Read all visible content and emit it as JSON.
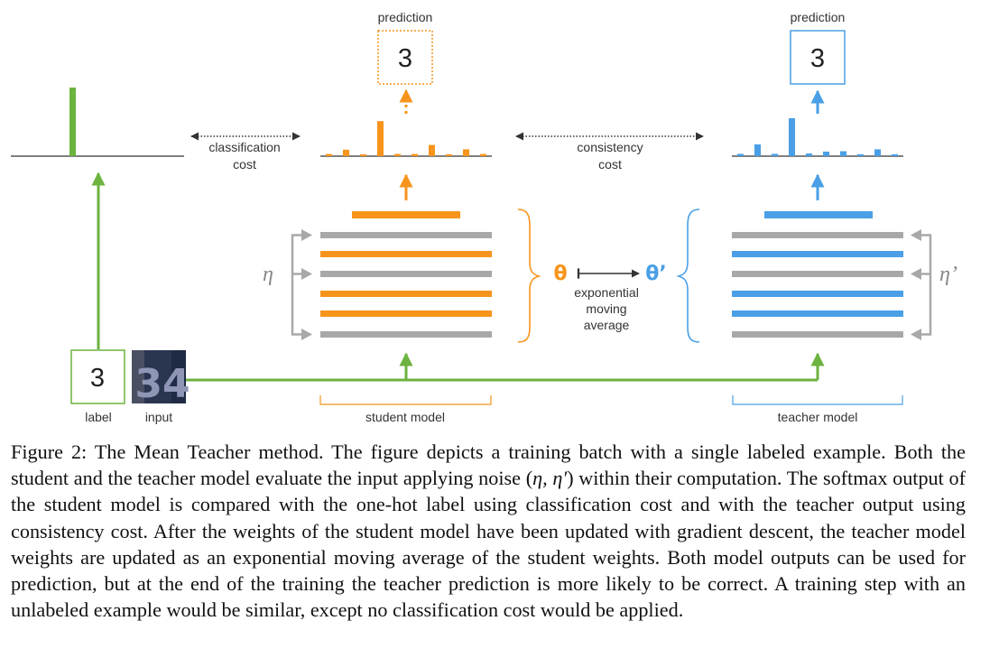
{
  "colors": {
    "green": "#6cb33f",
    "orange": "#f7941d",
    "blue": "#4a9fe6",
    "gray": "#a8a8a8",
    "dark": "#333333"
  },
  "labels": {
    "prediction_left": "prediction",
    "prediction_right": "prediction",
    "prediction_digit_left": "3",
    "prediction_digit_right": "3",
    "classification_cost_line1": "classification",
    "classification_cost_line2": "cost",
    "consistency_cost_line1": "consistency",
    "consistency_cost_line2": "cost",
    "theta": "θ",
    "theta_prime": "θ’",
    "ema_line1": "exponential",
    "ema_line2": "moving",
    "ema_line3": "average",
    "eta": "η",
    "eta_prime": "η’",
    "label_digit": "3",
    "label_caption": "label",
    "input_caption": "input",
    "input_image_text": "34",
    "student_model": "student model",
    "teacher_model": "teacher model"
  },
  "histograms": {
    "one_hot_label": [
      0,
      0,
      0,
      1,
      0,
      0,
      0,
      0,
      0,
      0
    ],
    "student_softmax": [
      0.06,
      0.18,
      0.04,
      0.97,
      0.06,
      0.06,
      0.31,
      0.05,
      0.19,
      0.06
    ],
    "teacher_softmax": [
      0.06,
      0.31,
      0.06,
      1.0,
      0.07,
      0.12,
      0.13,
      0.05,
      0.18,
      0.05
    ]
  },
  "caption": {
    "figure_label": "Figure 2:",
    "part1": "The Mean Teacher method. The figure depicts a training batch with a single labeled example. Both the student and the teacher model evaluate the input applying noise (",
    "math": "η, η′",
    "part2": ") within their computation. The softmax output of the student model is compared with the one-hot label using classification cost and with the teacher output using consistency cost. After the weights of the student model have been updated with gradient descent, the teacher model weights are updated as an exponential moving average of the student weights. Both model outputs can be used for prediction, but at the end of the training the teacher prediction is more likely to be correct. A training step with an unlabeled example would be similar, except no classification cost would be applied."
  }
}
